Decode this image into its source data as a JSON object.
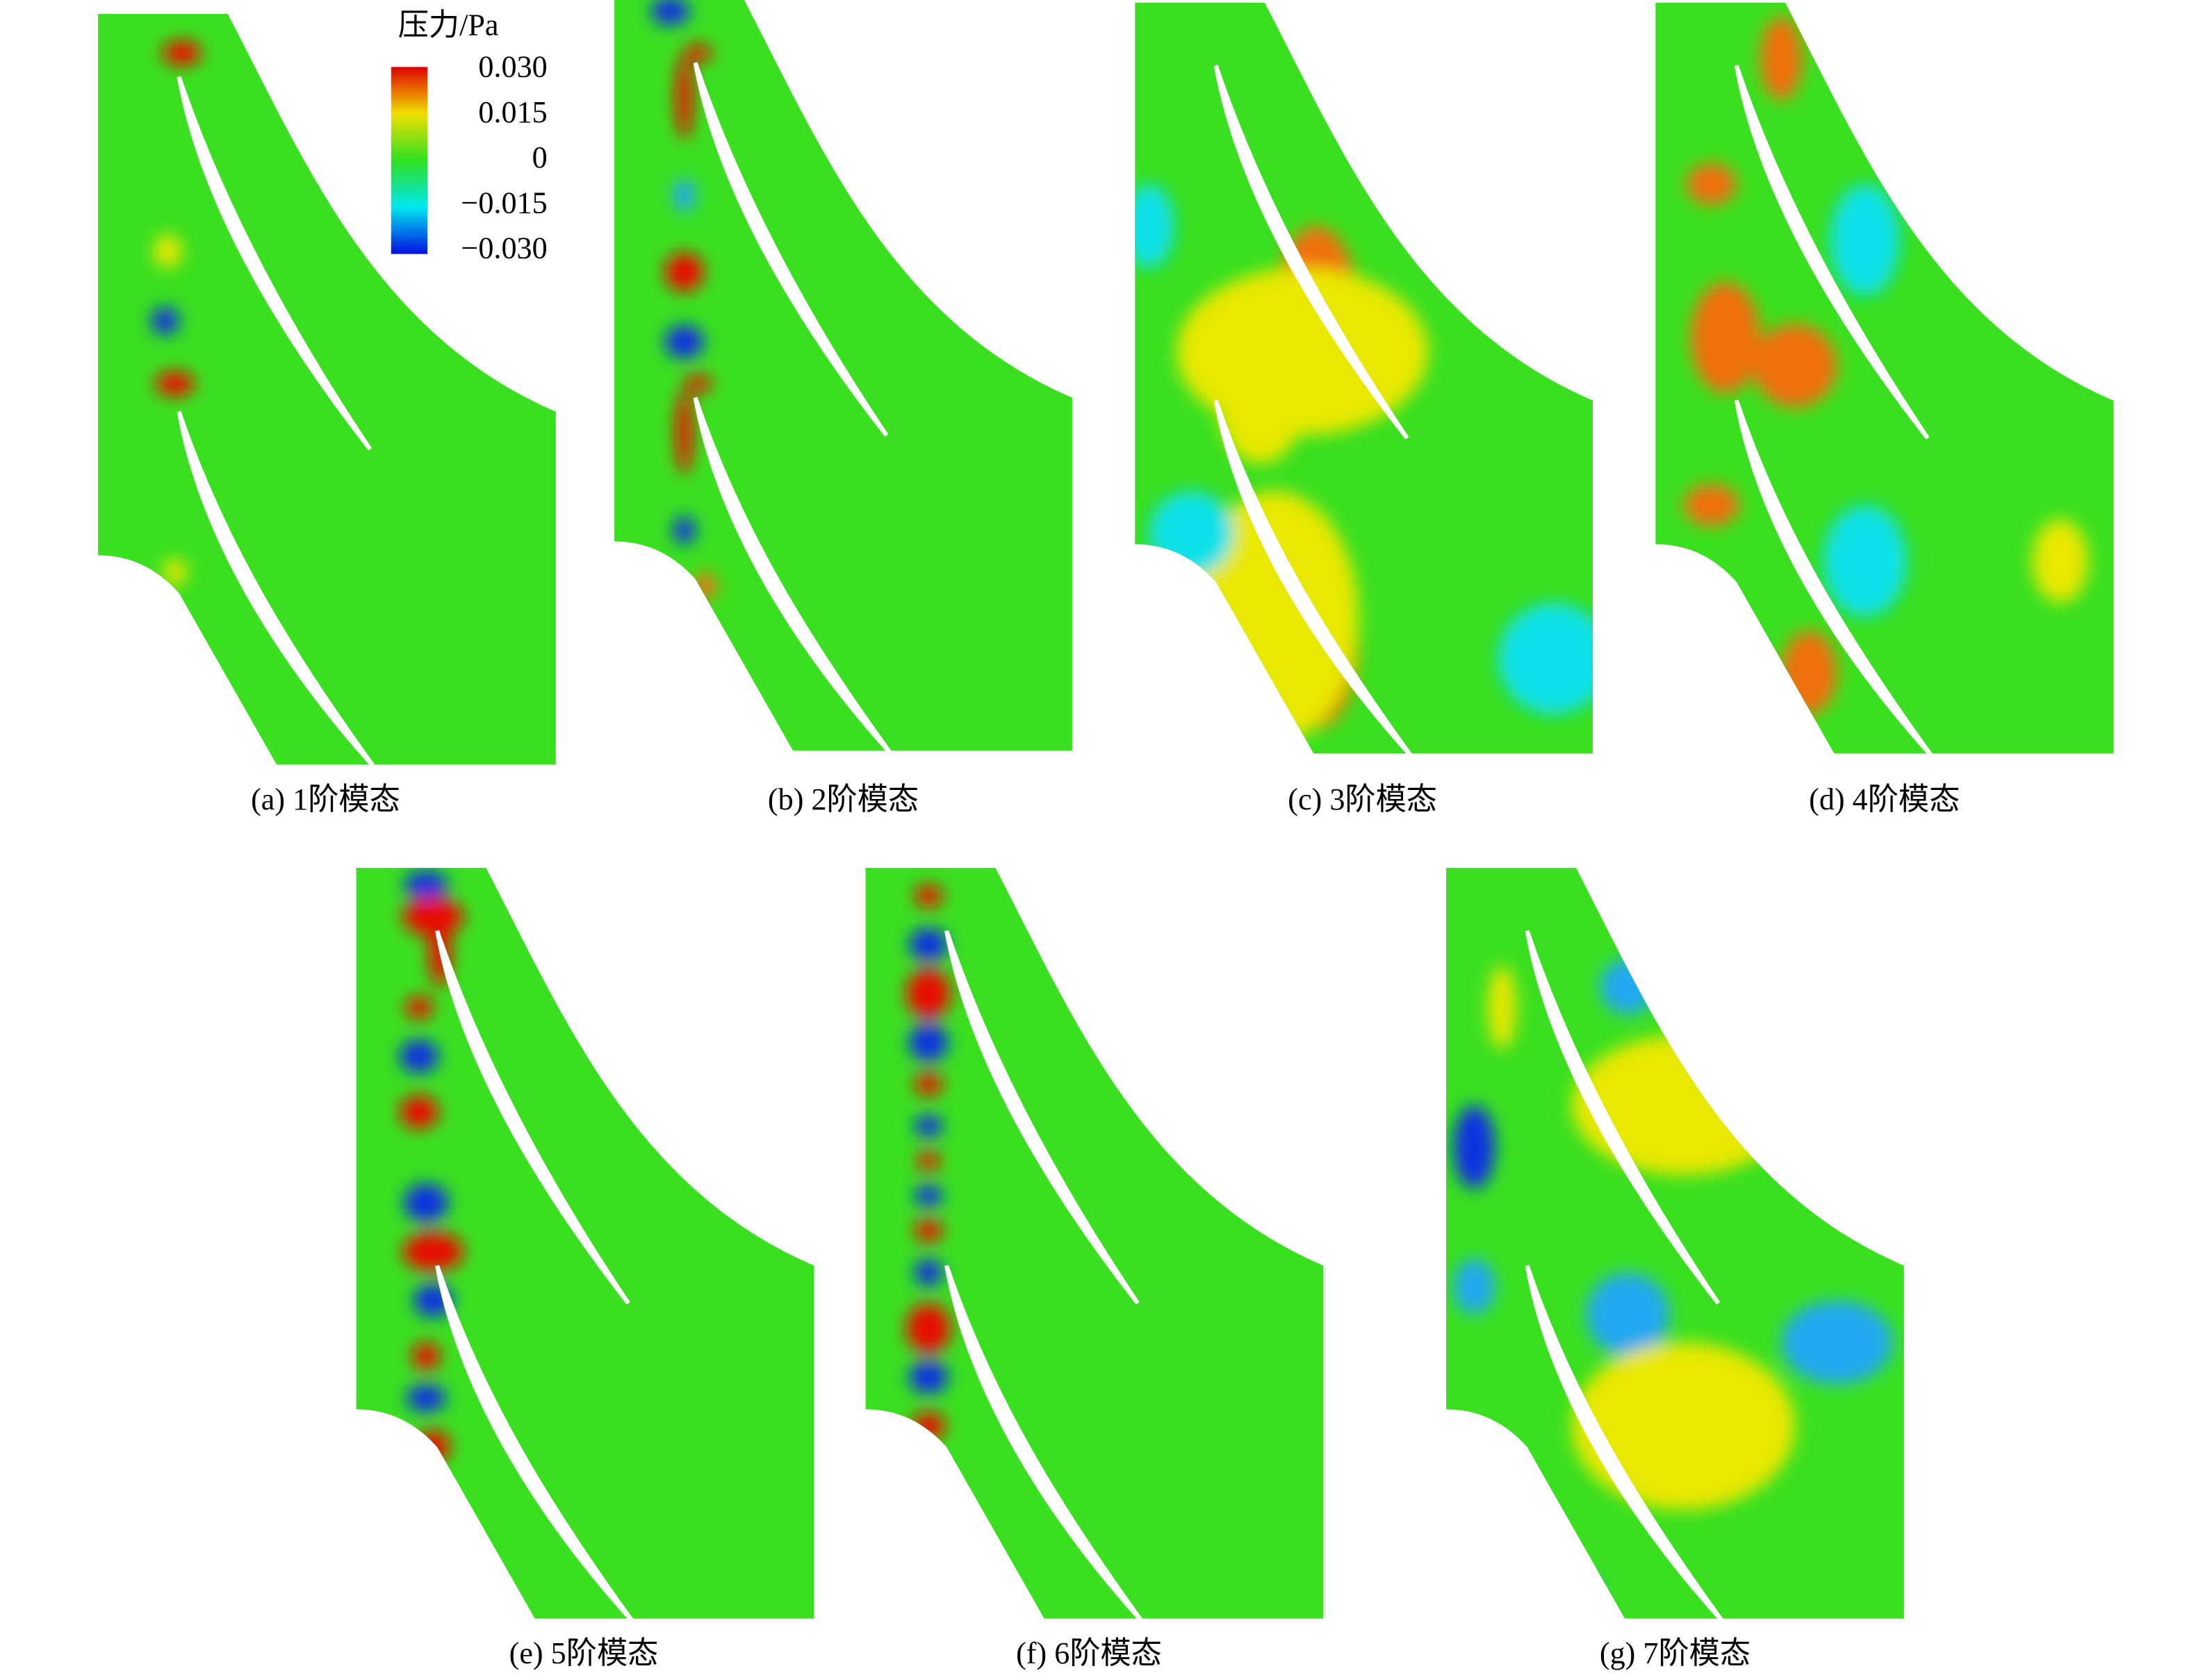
{
  "legend": {
    "title": "压力/Pa",
    "ticks": [
      {
        "value": 0.03,
        "label": "0.030"
      },
      {
        "value": 0.015,
        "label": "0.015"
      },
      {
        "value": 0,
        "label": "0"
      },
      {
        "value": -0.015,
        "label": "−0.015"
      },
      {
        "value": -0.03,
        "label": "−0.030"
      }
    ]
  },
  "panels": [
    {
      "caption": "(a) 1阶模态"
    },
    {
      "caption": "(b) 2阶模态"
    },
    {
      "caption": "(c) 3阶模态"
    },
    {
      "caption": "(d) 4阶模态"
    },
    {
      "caption": "(e) 5阶模态"
    },
    {
      "caption": "(f) 6阶模态"
    },
    {
      "caption": "(g) 7阶模态"
    }
  ]
}
